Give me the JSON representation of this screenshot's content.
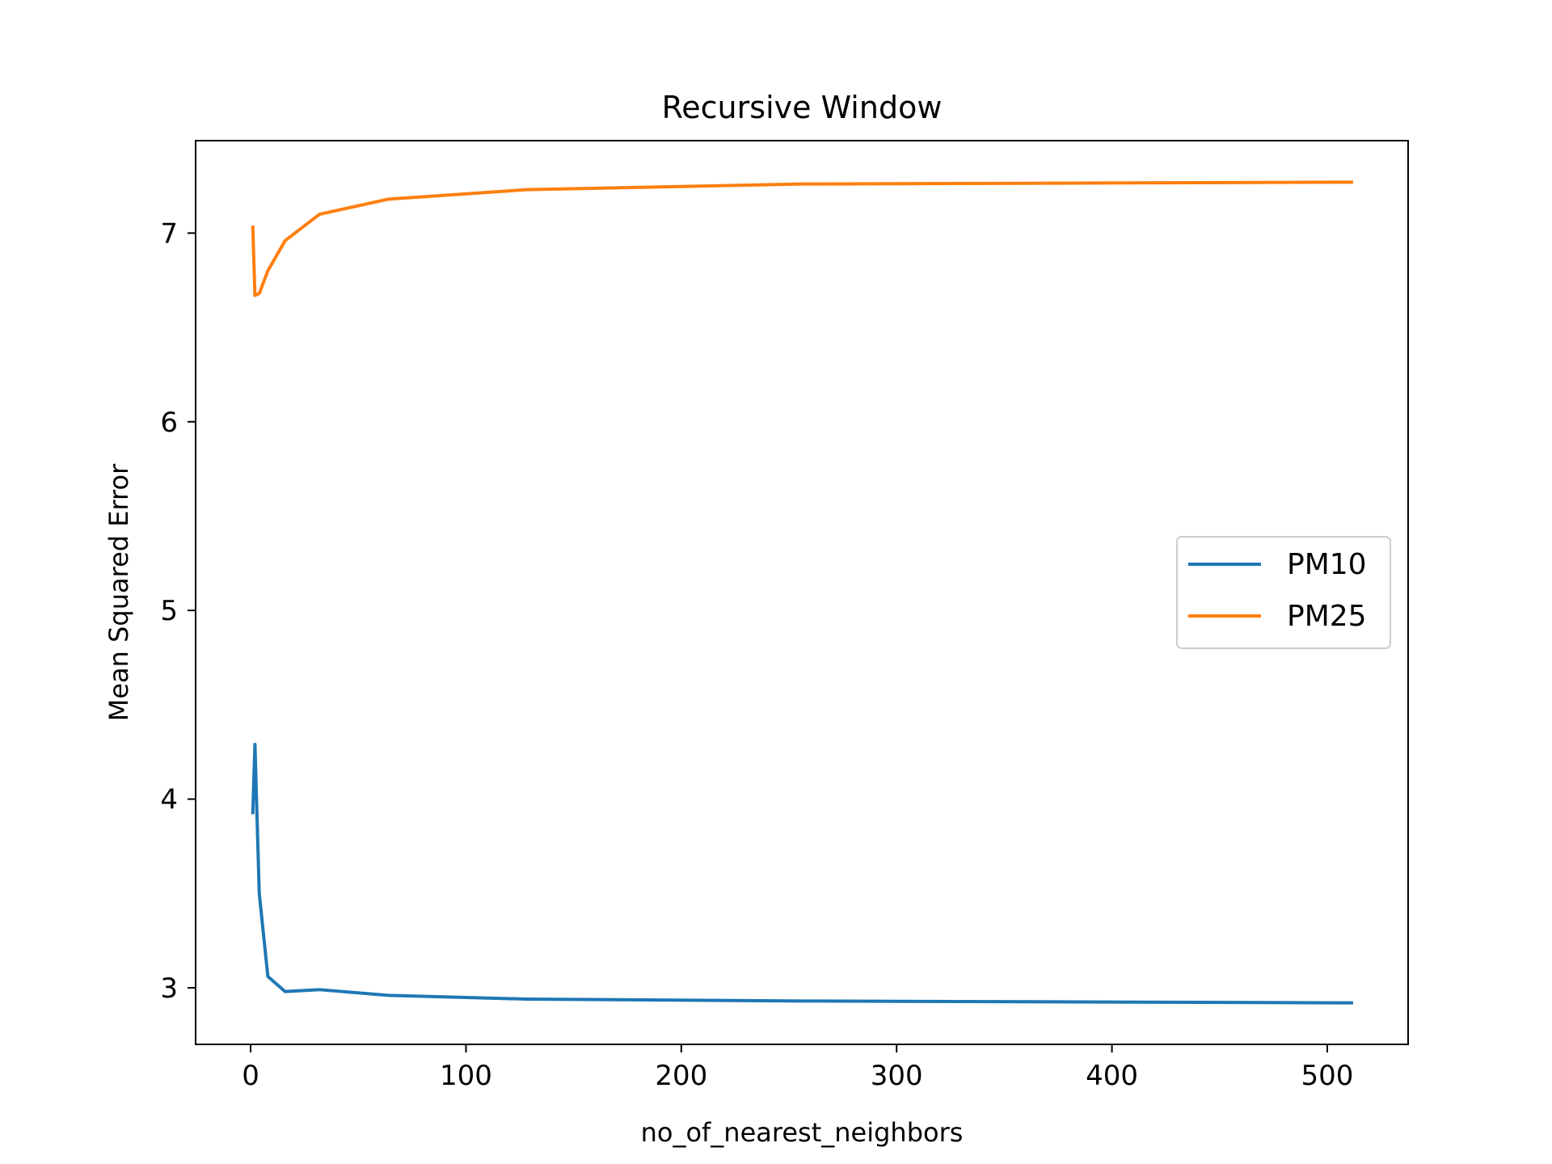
{
  "chart_data": {
    "type": "line",
    "title": "Recursive Window",
    "xlabel": "no_of_nearest_neighbors",
    "ylabel": "Mean Squared Error",
    "xlim": [
      -25.55,
      537.55
    ],
    "ylim": [
      2.7,
      7.49
    ],
    "xticks": [
      0,
      100,
      200,
      300,
      400,
      500
    ],
    "yticks": [
      3,
      4,
      5,
      6,
      7
    ],
    "grid": false,
    "legend_position": "center-right",
    "series": [
      {
        "name": "PM10",
        "color": "#1f77b4",
        "x": [
          1,
          2,
          4,
          8,
          16,
          32,
          64,
          128,
          256,
          512
        ],
        "y": [
          3.92,
          4.29,
          3.5,
          3.06,
          2.98,
          2.99,
          2.96,
          2.94,
          2.93,
          2.92
        ]
      },
      {
        "name": "PM25",
        "color": "#ff7f0e",
        "x": [
          1,
          2,
          4,
          8,
          16,
          32,
          64,
          128,
          256,
          512
        ],
        "y": [
          7.04,
          6.67,
          6.68,
          6.8,
          6.96,
          7.1,
          7.18,
          7.23,
          7.26,
          7.27
        ]
      }
    ]
  }
}
